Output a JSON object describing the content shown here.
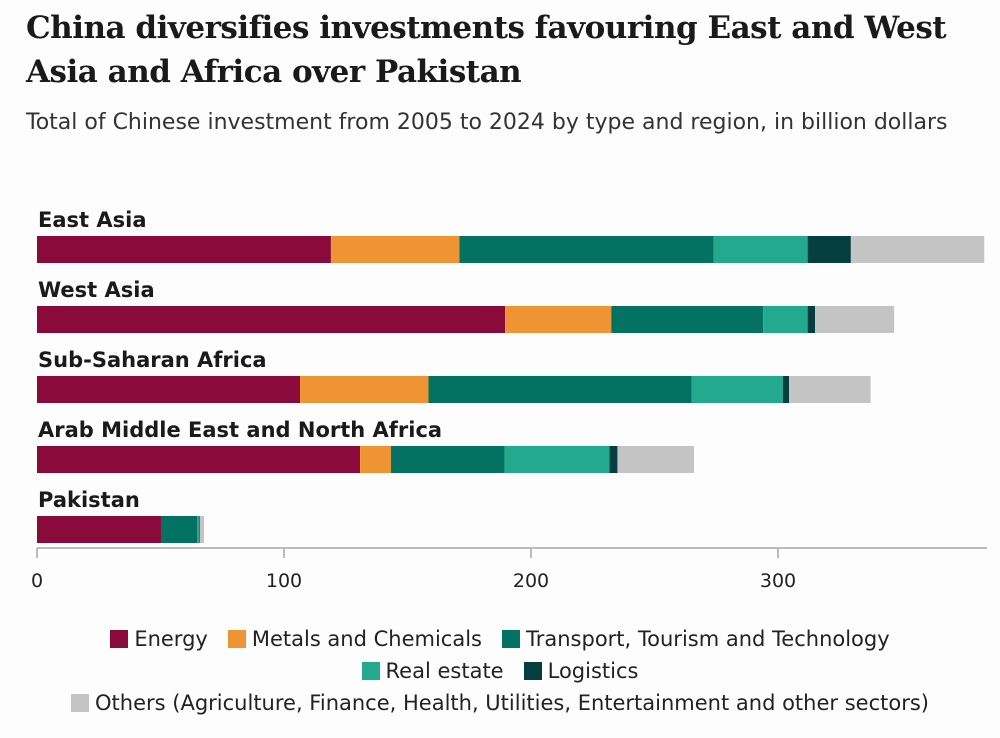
{
  "title": "China diversifies investments favouring East and West Asia and Africa over Pakistan",
  "subtitle": "Total of Chinese investment from 2005 to 2024 by type and region, in billion dollars",
  "chart_data": {
    "type": "bar",
    "orientation": "horizontal",
    "stacked": true,
    "title": "China diversifies investments favouring East and West Asia and Africa over Pakistan",
    "subtitle": "Total of Chinese investment from 2005 to 2024 by type and region, in billion dollars",
    "categories": [
      "East Asia",
      "West Asia",
      "Sub-Saharan Africa",
      "Arab Middle East and North Africa",
      "Pakistan"
    ],
    "series": [
      {
        "name": "Energy",
        "color": "#8a0b3b",
        "values": [
          119,
          189.5,
          106.5,
          130.8,
          50.2
        ]
      },
      {
        "name": "Metals and Chemicals",
        "color": "#ef9433",
        "values": [
          52,
          43,
          52,
          12.5,
          0
        ]
      },
      {
        "name": "Transport, Tourism and Technology",
        "color": "#047262",
        "values": [
          103,
          61.5,
          106.5,
          46,
          14.7
        ]
      },
      {
        "name": "Real estate",
        "color": "#22a98e",
        "values": [
          38,
          18,
          37,
          42.5,
          0.6
        ]
      },
      {
        "name": "Logistics",
        "color": "#053e3e",
        "values": [
          17.5,
          3,
          2.5,
          3.2,
          0.4
        ]
      },
      {
        "name": "Others (Agriculture, Finance, Health, Utilities, Entertainment and other sectors)",
        "color": "#c4c4c4",
        "values": [
          54,
          32,
          33,
          31,
          1.7
        ]
      }
    ],
    "xlim": [
      0,
      384
    ],
    "xticks": [
      0,
      100,
      200,
      300
    ],
    "xtick_labels": [
      "0",
      "100",
      "200",
      "300"
    ],
    "grid": false,
    "legend_position": "bottom"
  }
}
